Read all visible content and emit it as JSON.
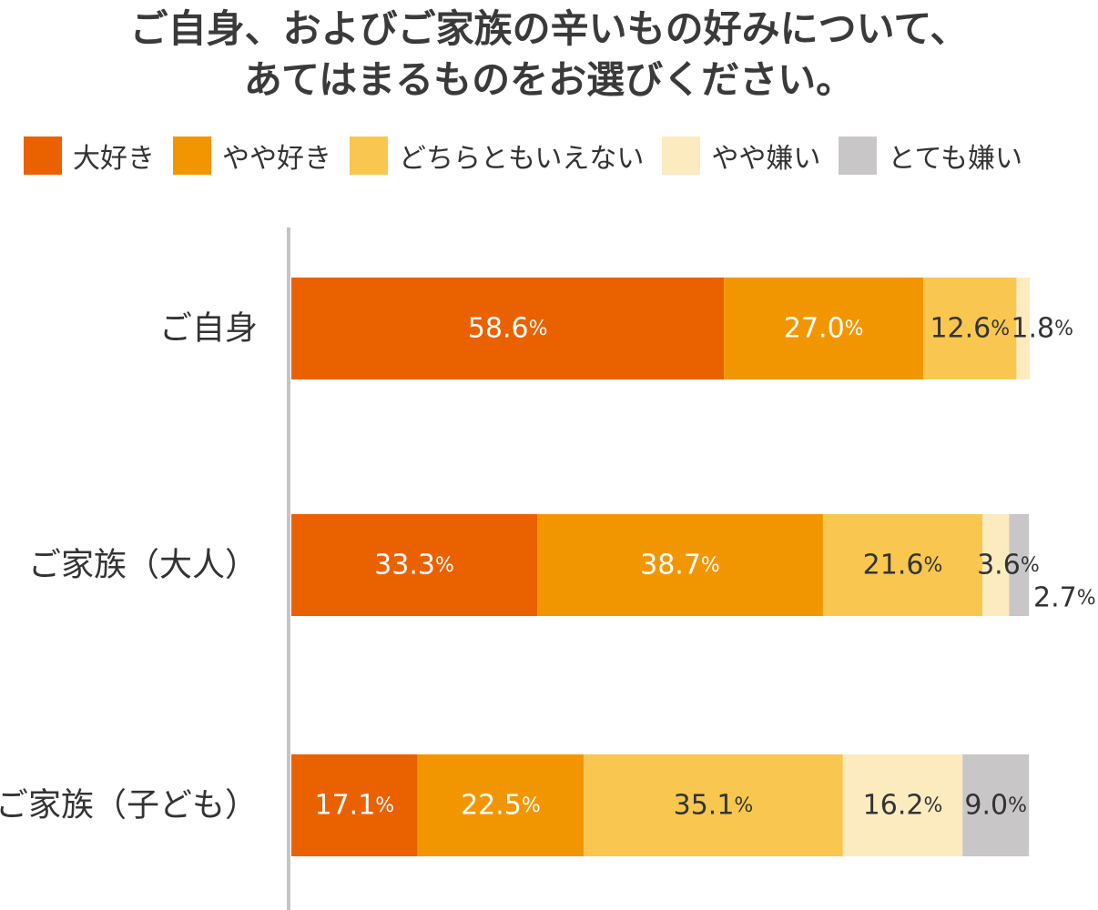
{
  "chart_data": {
    "type": "bar",
    "orientation": "horizontal",
    "stacked": true,
    "title": [
      "ご自身、およびご家族の辛いもの好みについて、",
      "あてはまるものをお選びください。"
    ],
    "xlabel": "",
    "ylabel": "",
    "xlim": [
      0,
      100
    ],
    "unit": "%",
    "legend_position": "top-left",
    "grid": false,
    "categories": [
      "ご自身",
      "ご家族（大人）",
      "ご家族（子ども）"
    ],
    "series": [
      {
        "name": "大好き",
        "color": "#EA6100",
        "values": [
          58.6,
          33.3,
          17.1
        ],
        "labels": [
          "58.6",
          "33.3",
          "17.1"
        ]
      },
      {
        "name": "やや好き",
        "color": "#F29600",
        "values": [
          27.0,
          38.7,
          22.5
        ],
        "labels": [
          "27.0",
          "38.7",
          "22.5"
        ]
      },
      {
        "name": "どちらともいえない",
        "color": "#F9C74F",
        "values": [
          12.6,
          21.6,
          35.1
        ],
        "labels": [
          "12.6",
          "21.6",
          "35.1"
        ]
      },
      {
        "name": "やや嫌い",
        "color": "#FDEBC0",
        "values": [
          1.8,
          3.6,
          16.2
        ],
        "labels": [
          "1.8",
          "3.6",
          "16.2"
        ]
      },
      {
        "name": "とても嫌い",
        "color": "#C8C6C6",
        "values": [
          0.0,
          2.7,
          9.0
        ],
        "labels": [
          "",
          "2.7",
          "9.0"
        ]
      }
    ]
  }
}
